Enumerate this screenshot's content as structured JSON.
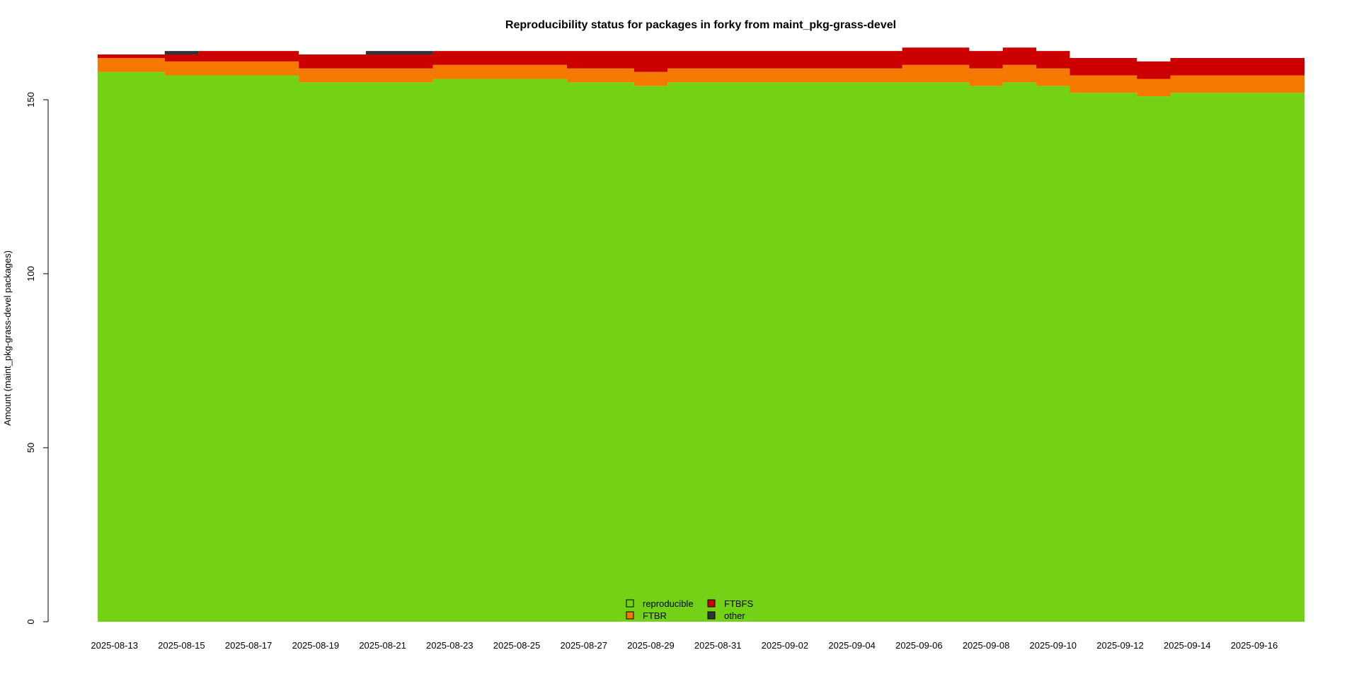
{
  "chart_data": {
    "type": "area",
    "stacked": true,
    "step": true,
    "title": "Reproducibility status for packages in forky from maint_pkg-grass-devel",
    "xlabel": "",
    "ylabel": "Amount (maint_pkg-grass-devel packages)",
    "ylim": [
      0,
      165
    ],
    "yticks": [
      0,
      50,
      100,
      150
    ],
    "xticklabels": [
      "2025-08-13",
      "2025-08-15",
      "2025-08-17",
      "2025-08-19",
      "2025-08-21",
      "2025-08-23",
      "2025-08-25",
      "2025-08-27",
      "2025-08-29",
      "2025-08-31",
      "2025-09-02",
      "2025-09-04",
      "2025-09-06",
      "2025-09-08",
      "2025-09-10",
      "2025-09-12",
      "2025-09-14",
      "2025-09-16"
    ],
    "x": [
      "2025-08-13",
      "2025-08-14",
      "2025-08-15",
      "2025-08-16",
      "2025-08-17",
      "2025-08-18",
      "2025-08-19",
      "2025-08-20",
      "2025-08-21",
      "2025-08-22",
      "2025-08-23",
      "2025-08-24",
      "2025-08-25",
      "2025-08-26",
      "2025-08-27",
      "2025-08-28",
      "2025-08-29",
      "2025-08-30",
      "2025-08-31",
      "2025-09-01",
      "2025-09-02",
      "2025-09-03",
      "2025-09-04",
      "2025-09-05",
      "2025-09-06",
      "2025-09-07",
      "2025-09-08",
      "2025-09-09",
      "2025-09-10",
      "2025-09-11",
      "2025-09-12",
      "2025-09-13",
      "2025-09-14",
      "2025-09-15",
      "2025-09-16",
      "2025-09-17"
    ],
    "grid": false,
    "legend_position": "bottom-center",
    "series": [
      {
        "name": "reproducible",
        "color": "#73d216",
        "values": [
          158,
          158,
          157,
          157,
          157,
          157,
          155,
          155,
          155,
          155,
          156,
          156,
          156,
          156,
          155,
          155,
          154,
          155,
          155,
          155,
          155,
          155,
          155,
          155,
          155,
          155,
          154,
          155,
          154,
          152,
          152,
          151,
          152,
          152,
          152,
          152
        ]
      },
      {
        "name": "FTBR",
        "color": "#f57900",
        "values": [
          4,
          4,
          4,
          4,
          4,
          4,
          4,
          4,
          4,
          4,
          4,
          4,
          4,
          4,
          4,
          4,
          4,
          4,
          4,
          4,
          4,
          4,
          4,
          4,
          5,
          5,
          5,
          5,
          5,
          5,
          5,
          5,
          5,
          5,
          5,
          5
        ]
      },
      {
        "name": "FTBFS",
        "color": "#cc0000",
        "values": [
          1,
          1,
          2,
          3,
          3,
          3,
          4,
          4,
          4,
          4,
          4,
          4,
          4,
          4,
          5,
          5,
          6,
          5,
          5,
          5,
          5,
          5,
          5,
          5,
          5,
          5,
          5,
          5,
          5,
          5,
          5,
          5,
          5,
          5,
          5,
          5
        ]
      },
      {
        "name": "other",
        "color": "#2e3436",
        "values": [
          0,
          0,
          1,
          0,
          0,
          0,
          0,
          0,
          1,
          1,
          0,
          0,
          0,
          0,
          0,
          0,
          0,
          0,
          0,
          0,
          0,
          0,
          0,
          0,
          0,
          0,
          0,
          0,
          0,
          0,
          0,
          0,
          0,
          0,
          0,
          0
        ]
      }
    ]
  }
}
